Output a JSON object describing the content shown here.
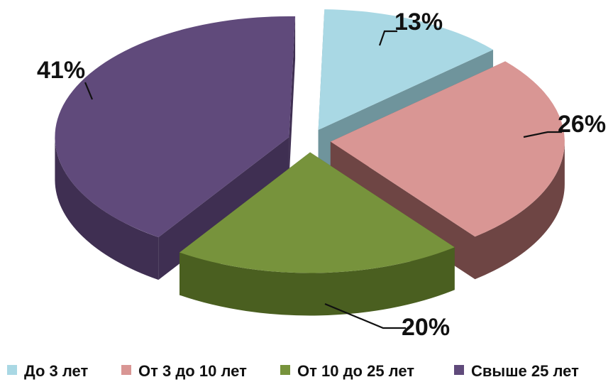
{
  "chart_data": {
    "type": "pie",
    "style": "3d-exploded",
    "categories": [
      "До 3 лет",
      "От 3 до 10 лет",
      "От 10 до 25 лет",
      "Свыше 25 лет"
    ],
    "values": [
      13,
      26,
      20,
      41
    ],
    "labels": [
      "13%",
      "26%",
      "20%",
      "41%"
    ],
    "colors": [
      "#a9d8e4",
      "#d99694",
      "#77933c",
      "#604a7b"
    ],
    "side_colors": [
      "#6f949c",
      "#6e4544",
      "#4a5f20",
      "#3f2f52"
    ],
    "legend_position": "bottom"
  }
}
